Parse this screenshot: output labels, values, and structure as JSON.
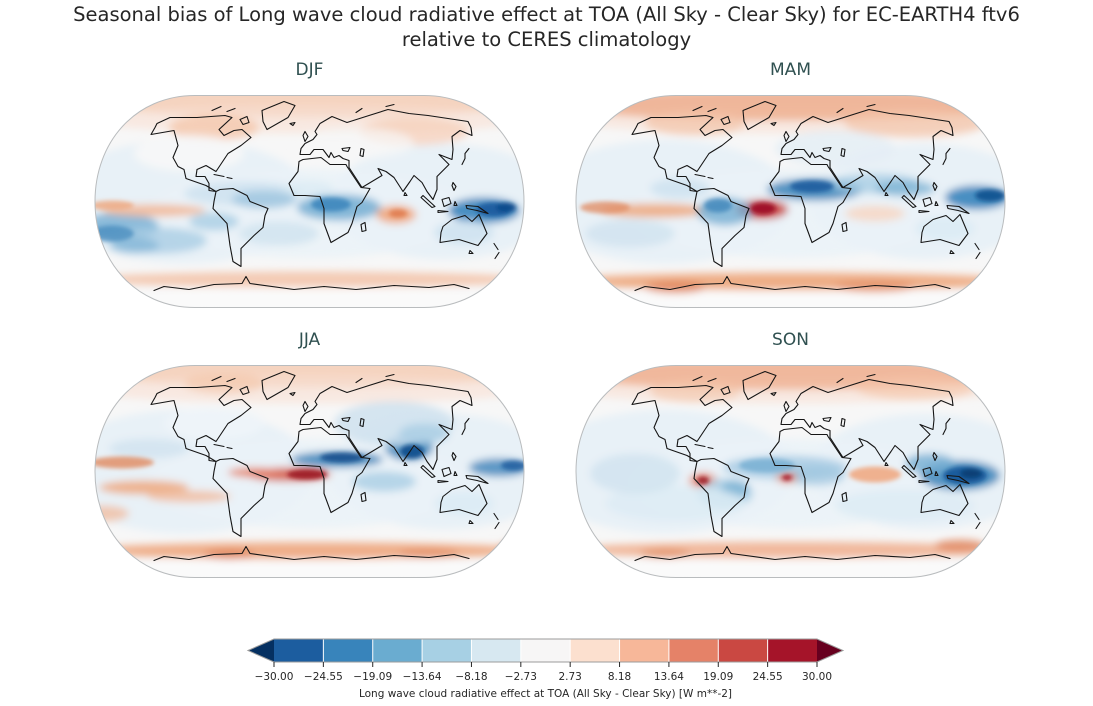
{
  "figure": {
    "title_line1": "Seasonal bias of Long wave cloud radiative effect at TOA (All Sky - Clear Sky) for EC-EARTH4 ftv6",
    "title_line2": "relative to CERES climatology",
    "background_color": "#ffffff",
    "title_color": "#262626",
    "panel_title_color": "#2f5050"
  },
  "panels": [
    {
      "label": "DJF"
    },
    {
      "label": "MAM"
    },
    {
      "label": "JJA"
    },
    {
      "label": "SON"
    }
  ],
  "colorbar": {
    "label": "Long wave cloud radiative effect at TOA (All Sky - Clear Sky) [W m**-2]",
    "ticks": [
      "−30.00",
      "−24.55",
      "−19.09",
      "−13.64",
      "−8.18",
      "−2.73",
      "2.73",
      "8.18",
      "13.64",
      "19.09",
      "24.55",
      "30.00"
    ],
    "segment_colors": [
      "#1c5d9f",
      "#3884bb",
      "#6aacd0",
      "#a7d0e4",
      "#d7e8f1",
      "#f7f6f6",
      "#fce0cf",
      "#f7b799",
      "#e58268",
      "#ca4842",
      "#a51429"
    ],
    "under_arrow_color": "#053061",
    "over_arrow_color": "#67001f",
    "outline_color": "#9b9b9b",
    "tick_color": "#262626"
  },
  "chart_data": {
    "type": "heatmap",
    "subtype": "geographic filled-contour bias maps (2x2 seasonal grid)",
    "projection": "Robinson, coastlines drawn in black",
    "title": "Seasonal bias of Long wave cloud radiative effect at TOA (All Sky - Clear Sky) for EC-EARTH4 ftv6 relative to CERES climatology",
    "variable": "Long wave cloud radiative effect at TOA (All Sky - Clear Sky)",
    "units": "W m**-2",
    "model": "EC-EARTH4 ftv6",
    "reference": "CERES climatology",
    "seasons": [
      "DJF",
      "MAM",
      "JJA",
      "SON"
    ],
    "colormap": "RdBu_r (blue = negative bias, red = positive bias)",
    "contour_levels": [
      -30.0,
      -24.55,
      -19.09,
      -13.64,
      -8.18,
      -2.73,
      2.73,
      8.18,
      13.64,
      19.09,
      24.55,
      30.0
    ],
    "colorbar_extend": "both",
    "legend_position": "horizontal colorbar centered below the panels",
    "notable_features": {
      "DJF": "Strong negative bias (dark blue) over the Maritime Continent / western tropical Pacific and equatorial Africa; positive bias (orange-red) over the central Indian Ocean, eastern equatorial Pacific, northern high latitudes and the Southern Ocean near 60S.",
      "MAM": "Intense positive bias (dark red) over the equatorial Atlantic off northeast Brazil; strong negative bias over the Sahel / northern tropical Africa and the western Pacific; salmon positive bias across the Arctic and along the Antarctic coast.",
      "JJA": "Dark red positive-bias band along the equatorial Atlantic into the Gulf of Guinea with a strong negative-bias band over the Sahel just north of it; strong negative bias over India / Bay of Bengal and the western Pacific warm pool; light blue over mid-latitude Eurasia.",
      "SON": "Strongest negative bias (dark blue) over the Maritime Continent; small intense positive-bias spots off the Peru coast and in the Gulf of Guinea; weak positive bias over the central Indian Ocean, Arctic and Southern Ocean."
    }
  }
}
